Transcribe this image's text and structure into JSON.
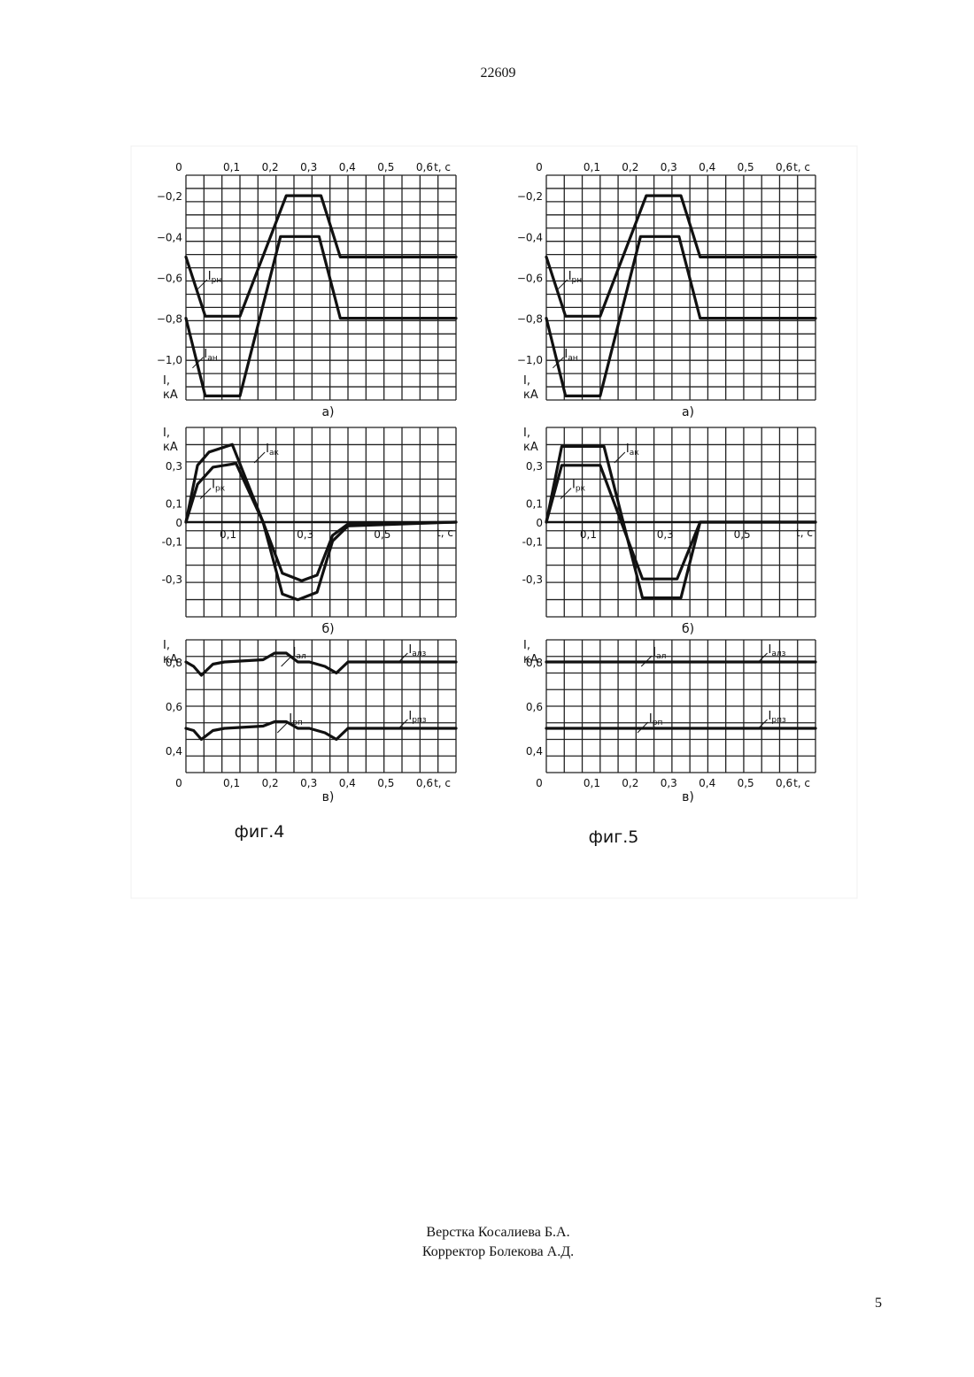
{
  "document_number": "22609",
  "page_number": "5",
  "credits": [
    "Верстка Косалиева Б.А.",
    "Корректор Болекова А.Д."
  ],
  "chart_data": [
    {
      "figure": "фиг.4",
      "panels": [
        {
          "type": "line",
          "caption": "а)",
          "xlabel": "t, с",
          "ylabel": [
            "I,",
            "кА"
          ],
          "xlim": [
            0,
            0.7
          ],
          "ylim": [
            -1.2,
            -0.1
          ],
          "x_ticks": [
            "0",
            "0,1",
            "0,2",
            "0,3",
            "0,4",
            "0,5",
            "0,6"
          ],
          "y_ticks": [
            {
              "v": -0.2,
              "label": "−0,2"
            },
            {
              "v": -0.4,
              "label": "−0,4"
            },
            {
              "v": -0.6,
              "label": "−0,6"
            },
            {
              "v": -0.8,
              "label": "−0,8"
            },
            {
              "v": -1.0,
              "label": "−1,0"
            }
          ],
          "series": [
            {
              "name": "Iрн",
              "label_sub": "рн",
              "x": [
                0,
                0.05,
                0.14,
                0.26,
                0.35,
                0.4,
                0.7
              ],
              "y": [
                -0.5,
                -0.79,
                -0.79,
                -0.2,
                -0.2,
                -0.5,
                -0.5
              ]
            },
            {
              "name": "Iан",
              "label_sub": "ан",
              "x": [
                0,
                0.05,
                0.14,
                0.245,
                0.345,
                0.4,
                0.7
              ],
              "y": [
                -0.8,
                -1.18,
                -1.18,
                -0.4,
                -0.4,
                -0.8,
                -0.8
              ]
            }
          ]
        },
        {
          "type": "line",
          "caption": "б)",
          "xlabel": "t, с",
          "ylabel": [
            "I,",
            "кА"
          ],
          "xlim": [
            0,
            0.7
          ],
          "ylim": [
            -0.5,
            0.5
          ],
          "x_ticks": [
            {
              "v": 0.1,
              "label": "0,1"
            },
            {
              "v": 0.3,
              "label": "0,3"
            },
            {
              "v": 0.5,
              "label": "0,5"
            }
          ],
          "y_ticks": [
            {
              "v": 0.3,
              "label": "0,3"
            },
            {
              "v": 0.1,
              "label": "0,1"
            },
            {
              "v": 0,
              "label": "0"
            },
            {
              "v": -0.1,
              "label": "-0,1"
            },
            {
              "v": -0.3,
              "label": "-0,3"
            }
          ],
          "series": [
            {
              "name": "Iак",
              "label_sub": "ак",
              "x": [
                0,
                0.03,
                0.06,
                0.12,
                0.2,
                0.25,
                0.29,
                0.34,
                0.38,
                0.42,
                0.7
              ],
              "y": [
                0,
                0.3,
                0.37,
                0.41,
                0,
                -0.38,
                -0.41,
                -0.37,
                -0.1,
                -0.02,
                0
              ]
            },
            {
              "name": "Iрк",
              "label_sub": "рк",
              "x": [
                0,
                0.03,
                0.07,
                0.13,
                0.2,
                0.25,
                0.3,
                0.34,
                0.38,
                0.42,
                0.7
              ],
              "y": [
                0,
                0.2,
                0.29,
                0.31,
                0,
                -0.27,
                -0.31,
                -0.28,
                -0.07,
                -0.01,
                0
              ]
            }
          ]
        },
        {
          "type": "line",
          "caption": "в)",
          "xlabel": "t, с",
          "ylabel": [
            "I,",
            "кА"
          ],
          "xlim": [
            0,
            0.7
          ],
          "ylim": [
            0.3,
            0.9
          ],
          "x_ticks": [
            "0",
            "0,1",
            "0,2",
            "0,3",
            "0,4",
            "0,5",
            "0,6"
          ],
          "y_ticks": [
            {
              "v": 0.8,
              "label": "0,8"
            },
            {
              "v": 0.6,
              "label": "0,6"
            },
            {
              "v": 0.4,
              "label": "0,4"
            }
          ],
          "series": [
            {
              "name": "Iал",
              "label_sub": "ал",
              "x": [
                0,
                0.02,
                0.04,
                0.07,
                0.1,
                0.2,
                0.23,
                0.26,
                0.29,
                0.32,
                0.36,
                0.39,
                0.42,
                0.7
              ],
              "y": [
                0.8,
                0.78,
                0.74,
                0.79,
                0.8,
                0.81,
                0.84,
                0.84,
                0.8,
                0.8,
                0.78,
                0.75,
                0.8,
                0.8
              ]
            },
            {
              "name": "Iрп",
              "label_sub": "рп",
              "x": [
                0,
                0.02,
                0.04,
                0.07,
                0.1,
                0.2,
                0.23,
                0.26,
                0.29,
                0.32,
                0.36,
                0.39,
                0.42,
                0.7
              ],
              "y": [
                0.5,
                0.49,
                0.45,
                0.49,
                0.5,
                0.51,
                0.53,
                0.53,
                0.5,
                0.5,
                0.48,
                0.45,
                0.5,
                0.5
              ]
            }
          ],
          "reference_labels": [
            {
              "text": "Iалз",
              "label_sub": "алз",
              "y": 0.8
            },
            {
              "text": "Iрпз",
              "label_sub": "рпз",
              "y": 0.5
            }
          ]
        }
      ]
    },
    {
      "figure": "фиг.5",
      "panels": [
        {
          "type": "line",
          "caption": "а)",
          "xlabel": "t, с",
          "ylabel": [
            "I,",
            "кА"
          ],
          "xlim": [
            0,
            0.7
          ],
          "ylim": [
            -1.2,
            -0.1
          ],
          "x_ticks": [
            "0",
            "0,1",
            "0,2",
            "0,3",
            "0,4",
            "0,5",
            "0,6"
          ],
          "y_ticks": [
            {
              "v": -0.2,
              "label": "−0,2"
            },
            {
              "v": -0.4,
              "label": "−0,4"
            },
            {
              "v": -0.6,
              "label": "−0,6"
            },
            {
              "v": -0.8,
              "label": "−0,8"
            },
            {
              "v": -1.0,
              "label": "−1,0"
            }
          ],
          "series": [
            {
              "name": "Iрн",
              "label_sub": "рн",
              "x": [
                0,
                0.05,
                0.14,
                0.26,
                0.35,
                0.4,
                0.7
              ],
              "y": [
                -0.5,
                -0.79,
                -0.79,
                -0.2,
                -0.2,
                -0.5,
                -0.5
              ]
            },
            {
              "name": "Iан",
              "label_sub": "ан",
              "x": [
                0,
                0.05,
                0.14,
                0.245,
                0.345,
                0.4,
                0.7
              ],
              "y": [
                -0.8,
                -1.18,
                -1.18,
                -0.4,
                -0.4,
                -0.8,
                -0.8
              ]
            }
          ]
        },
        {
          "type": "line",
          "caption": "б)",
          "xlabel": "t, с",
          "ylabel": [
            "I,",
            "кА"
          ],
          "xlim": [
            0,
            0.7
          ],
          "ylim": [
            -0.5,
            0.5
          ],
          "x_ticks": [
            {
              "v": 0.1,
              "label": "0,1"
            },
            {
              "v": 0.3,
              "label": "0,3"
            },
            {
              "v": 0.5,
              "label": "0,5"
            }
          ],
          "y_ticks": [
            {
              "v": 0.3,
              "label": "0,3"
            },
            {
              "v": 0.1,
              "label": "0,1"
            },
            {
              "v": 0,
              "label": "0"
            },
            {
              "v": -0.1,
              "label": "-0,1"
            },
            {
              "v": -0.3,
              "label": "-0,3"
            }
          ],
          "series": [
            {
              "name": "Iак",
              "label_sub": "ак",
              "x": [
                0,
                0.04,
                0.15,
                0.25,
                0.35,
                0.4,
                0.7
              ],
              "y": [
                0,
                0.4,
                0.4,
                -0.4,
                -0.4,
                0,
                0
              ]
            },
            {
              "name": "Iрк",
              "label_sub": "рк",
              "x": [
                0,
                0.04,
                0.14,
                0.25,
                0.34,
                0.4,
                0.7
              ],
              "y": [
                0,
                0.3,
                0.3,
                -0.3,
                -0.3,
                0,
                0
              ]
            }
          ]
        },
        {
          "type": "line",
          "caption": "в)",
          "xlabel": "t, с",
          "ylabel": [
            "I,",
            "кА"
          ],
          "xlim": [
            0,
            0.7
          ],
          "ylim": [
            0.3,
            0.9
          ],
          "x_ticks": [
            "0",
            "0,1",
            "0,2",
            "0,3",
            "0,4",
            "0,5",
            "0,6"
          ],
          "y_ticks": [
            {
              "v": 0.8,
              "label": "0,8"
            },
            {
              "v": 0.6,
              "label": "0,6"
            },
            {
              "v": 0.4,
              "label": "0,4"
            }
          ],
          "series": [
            {
              "name": "Iал",
              "label_sub": "ал",
              "x": [
                0,
                0.7
              ],
              "y": [
                0.8,
                0.8
              ]
            },
            {
              "name": "Iрп",
              "label_sub": "рп",
              "x": [
                0,
                0.7
              ],
              "y": [
                0.5,
                0.5
              ]
            }
          ],
          "reference_labels": [
            {
              "text": "Iалз",
              "label_sub": "алз",
              "y": 0.8
            },
            {
              "text": "Iрпз",
              "label_sub": "рпз",
              "y": 0.5
            }
          ]
        }
      ]
    }
  ]
}
